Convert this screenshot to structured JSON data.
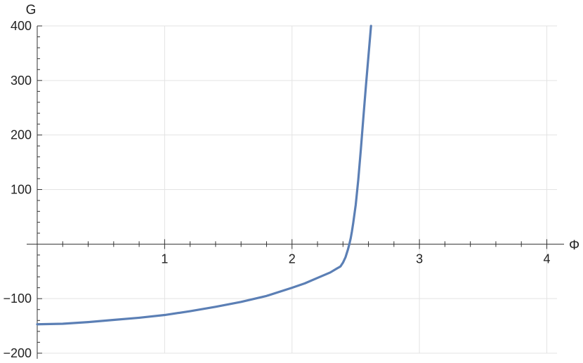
{
  "chart_data": {
    "type": "line",
    "title": "",
    "xlabel": "Φ",
    "ylabel": "G",
    "xlim": [
      0,
      4.08
    ],
    "ylim": [
      -200,
      400
    ],
    "grid": true,
    "legend": "none",
    "x_ticks": [
      1,
      2,
      3,
      4
    ],
    "x_tick_labels": [
      "1",
      "2",
      "3",
      "4"
    ],
    "y_ticks": [
      -200,
      -100,
      100,
      200,
      300,
      400
    ],
    "y_tick_labels": [
      "-200",
      "-100",
      "100",
      "200",
      "300",
      "400"
    ],
    "x_minor_step": 0.2,
    "y_minor_step": 20,
    "series": [
      {
        "color": "#5b7fb5",
        "x": [
          0.0,
          0.1,
          0.2,
          0.4,
          0.6,
          0.8,
          1.0,
          1.2,
          1.4,
          1.6,
          1.8,
          2.0,
          2.1,
          2.2,
          2.3,
          2.35,
          2.38,
          2.4,
          2.42,
          2.44,
          2.45,
          2.46,
          2.47,
          2.48,
          2.5,
          2.52,
          2.54,
          2.56,
          2.58,
          2.6,
          2.62
        ],
        "y": [
          -147,
          -146.5,
          -146,
          -143,
          -139,
          -135,
          -130,
          -123,
          -115,
          -106,
          -95,
          -80,
          -72,
          -62,
          -52,
          -45,
          -41,
          -34,
          -24,
          -9,
          0,
          10,
          23,
          38,
          72,
          118,
          173,
          232,
          290,
          345,
          400
        ]
      }
    ]
  }
}
